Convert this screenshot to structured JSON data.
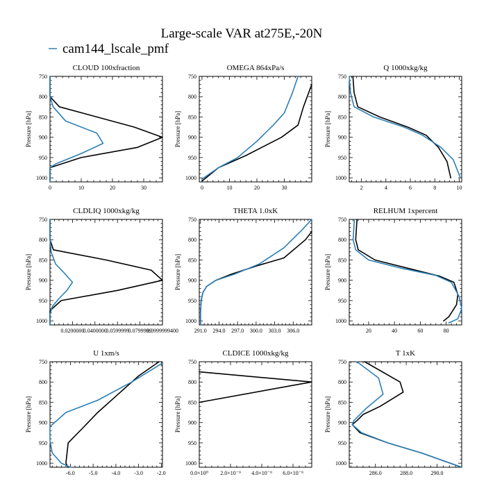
{
  "figure": {
    "title": "Large-scale VAR at275E,-20N",
    "legend_label": "cam144_lscale_pmf",
    "legend_color": "#2a7fb6"
  },
  "colors": {
    "obs": "#000000",
    "model": "#2a7fb6"
  },
  "chart_data": [
    {
      "type": "line",
      "title": "CLOUD  100xfraction",
      "ylabel": "Pressure [hPa]",
      "xlim": [
        0,
        36
      ],
      "ylim": [
        1010,
        750
      ],
      "inverted_y": true,
      "yticks": [
        750,
        800,
        850,
        900,
        950,
        1000
      ],
      "xticks": [
        0,
        10,
        20,
        30
      ],
      "xtick_labels": [
        "0",
        "10",
        "20",
        "30"
      ],
      "series": [
        {
          "color": "#000000",
          "points": [
            [
              0,
              750
            ],
            [
              0,
              800
            ],
            [
              3,
              825
            ],
            [
              27,
              875
            ],
            [
              36,
              900
            ],
            [
              28,
              925
            ],
            [
              10,
              950
            ],
            [
              0,
              975
            ],
            [
              0,
              1010
            ]
          ]
        },
        {
          "color": "#2a7fb6",
          "points": [
            [
              0,
              750
            ],
            [
              0,
              800
            ],
            [
              1,
              825
            ],
            [
              5,
              860
            ],
            [
              15,
              890
            ],
            [
              17,
              915
            ],
            [
              10,
              940
            ],
            [
              2,
              965
            ],
            [
              0,
              975
            ],
            [
              0,
              1010
            ]
          ]
        }
      ]
    },
    {
      "type": "line",
      "title": "OMEGA  864xPa/s",
      "ylabel": "Pressure [hPa]",
      "xlim": [
        -1,
        40
      ],
      "ylim": [
        1010,
        750
      ],
      "inverted_y": true,
      "yticks": [
        750,
        800,
        850,
        900,
        950,
        1000
      ],
      "xticks": [
        0,
        10,
        20,
        30
      ],
      "xtick_labels": [
        "0",
        "10",
        "20",
        "30"
      ],
      "series": [
        {
          "color": "#000000",
          "points": [
            [
              0,
              1008
            ],
            [
              6,
              975
            ],
            [
              16,
              945
            ],
            [
              29,
              900
            ],
            [
              35,
              870
            ],
            [
              37,
              825
            ],
            [
              40,
              770
            ]
          ]
        },
        {
          "color": "#2a7fb6",
          "points": [
            [
              0,
              1003
            ],
            [
              6,
              975
            ],
            [
              13,
              950
            ],
            [
              20,
              910
            ],
            [
              26,
              870
            ],
            [
              30,
              840
            ],
            [
              33,
              790
            ],
            [
              35,
              750
            ]
          ]
        }
      ]
    },
    {
      "type": "line",
      "title": "Q  1000xkg/kg",
      "ylabel": "Pressure [hPa]",
      "xlim": [
        1,
        10.2
      ],
      "ylim": [
        1010,
        750
      ],
      "inverted_y": true,
      "yticks": [
        750,
        800,
        850,
        900,
        950,
        1000
      ],
      "xticks": [
        2,
        4,
        6,
        8,
        10
      ],
      "xtick_labels": [
        "2",
        "4",
        "6",
        "8",
        "10"
      ],
      "series": [
        {
          "color": "#000000",
          "points": [
            [
              1.3,
              750
            ],
            [
              1.4,
              790
            ],
            [
              1.7,
              825
            ],
            [
              3.5,
              850
            ],
            [
              5.8,
              875
            ],
            [
              7.3,
              895
            ],
            [
              8.3,
              925
            ],
            [
              9.0,
              960
            ],
            [
              9.3,
              1000
            ]
          ]
        },
        {
          "color": "#2a7fb6",
          "points": [
            [
              1.0,
              750
            ],
            [
              1.1,
              790
            ],
            [
              1.4,
              825
            ],
            [
              3.0,
              850
            ],
            [
              5.5,
              875
            ],
            [
              7.0,
              895
            ],
            [
              8.5,
              925
            ],
            [
              9.5,
              955
            ],
            [
              10.1,
              1000
            ]
          ]
        }
      ]
    },
    {
      "type": "line",
      "title": "CLDLIQ  1000xkg/kg",
      "ylabel": "Pressure [hPa]",
      "xlim": [
        0,
        0.1
      ],
      "ylim": [
        1010,
        750
      ],
      "inverted_y": true,
      "yticks": [
        750,
        800,
        850,
        900,
        950,
        1000
      ],
      "xticks": [
        0.02,
        0.04,
        0.06,
        0.08,
        0.1
      ],
      "xtick_labels": [
        "0.0200000",
        "0.0400000",
        "0.0599999",
        "0.0799999",
        "0.0999999400"
      ],
      "series": [
        {
          "color": "#000000",
          "points": [
            [
              0,
              750
            ],
            [
              0,
              800
            ],
            [
              0.003,
              825
            ],
            [
              0.05,
              850
            ],
            [
              0.09,
              875
            ],
            [
              0.1,
              900
            ],
            [
              0.06,
              925
            ],
            [
              0.01,
              950
            ],
            [
              0,
              975
            ],
            [
              0,
              1010
            ]
          ]
        },
        {
          "color": "#2a7fb6",
          "points": [
            [
              0,
              750
            ],
            [
              0,
              800
            ],
            [
              0.001,
              830
            ],
            [
              0.005,
              860
            ],
            [
              0.012,
              880
            ],
            [
              0.02,
              905
            ],
            [
              0.015,
              925
            ],
            [
              0.008,
              945
            ],
            [
              0.002,
              965
            ],
            [
              0,
              985
            ],
            [
              0,
              1010
            ]
          ]
        }
      ]
    },
    {
      "type": "line",
      "title": "THETA  1.0xK",
      "ylabel": "Pressure [hPa]",
      "xlim": [
        290.8,
        309
      ],
      "ylim": [
        1010,
        750
      ],
      "inverted_y": true,
      "yticks": [
        750,
        800,
        850,
        900,
        950,
        1000
      ],
      "xticks": [
        291,
        294,
        297,
        300,
        303,
        306
      ],
      "xtick_labels": [
        "291.0",
        "294.0",
        "297.0",
        "300.0",
        "303.0",
        "306.0"
      ],
      "series": [
        {
          "color": "#000000",
          "points": [
            [
              291,
              1010
            ],
            [
              291,
              980
            ],
            [
              291.1,
              950
            ],
            [
              291.4,
              930
            ],
            [
              292,
              915
            ],
            [
              293.5,
              900
            ],
            [
              296,
              885
            ],
            [
              300,
              865
            ],
            [
              304.5,
              845
            ],
            [
              308,
              800
            ],
            [
              309,
              780
            ]
          ]
        },
        {
          "color": "#2a7fb6",
          "points": [
            [
              291,
              1010
            ],
            [
              291,
              980
            ],
            [
              291.1,
              950
            ],
            [
              291.4,
              930
            ],
            [
              292,
              915
            ],
            [
              293.5,
              900
            ],
            [
              296.5,
              885
            ],
            [
              300.5,
              860
            ],
            [
              304.5,
              820
            ],
            [
              307.5,
              775
            ],
            [
              309,
              750
            ]
          ]
        }
      ]
    },
    {
      "type": "line",
      "title": "RELHUM  1xpercent",
      "ylabel": "Pressure [hPa]",
      "xlim": [
        5,
        92
      ],
      "ylim": [
        1010,
        750
      ],
      "inverted_y": true,
      "yticks": [
        750,
        800,
        850,
        900,
        950,
        1000
      ],
      "xticks": [
        20,
        40,
        60,
        80
      ],
      "xtick_labels": [
        "20",
        "40",
        "60",
        "80"
      ],
      "series": [
        {
          "color": "#000000",
          "points": [
            [
              11,
              750
            ],
            [
              10,
              800
            ],
            [
              12,
              825
            ],
            [
              25,
              850
            ],
            [
              50,
              870
            ],
            [
              75,
              890
            ],
            [
              86,
              905
            ],
            [
              89,
              935
            ],
            [
              88,
              960
            ],
            [
              82,
              990
            ],
            [
              78,
              1000
            ]
          ]
        },
        {
          "color": "#2a7fb6",
          "points": [
            [
              9,
              750
            ],
            [
              8,
              800
            ],
            [
              10,
              825
            ],
            [
              20,
              850
            ],
            [
              45,
              870
            ],
            [
              72,
              888
            ],
            [
              84,
              905
            ],
            [
              90,
              940
            ],
            [
              92,
              970
            ],
            [
              89,
              995
            ],
            [
              82,
              1005
            ]
          ]
        }
      ]
    },
    {
      "type": "line",
      "title": "U  1xm/s",
      "ylabel": "Pressure [hPa]",
      "xlim": [
        -6.9,
        -1.95
      ],
      "ylim": [
        1010,
        750
      ],
      "inverted_y": true,
      "yticks": [
        750,
        800,
        850,
        900,
        950,
        1000
      ],
      "xticks": [
        -6,
        -5,
        -4,
        -3,
        -2
      ],
      "xtick_labels": [
        "-6.0",
        "-5.0",
        "-4.0",
        "-3.0",
        "-2.0"
      ],
      "series": [
        {
          "color": "#000000",
          "points": [
            [
              -2.1,
              750
            ],
            [
              -3,
              785
            ],
            [
              -4,
              835
            ],
            [
              -4.8,
              875
            ],
            [
              -5.4,
              910
            ],
            [
              -6.1,
              950
            ],
            [
              -6.2,
              1000
            ],
            [
              -6.1,
              1010
            ]
          ]
        },
        {
          "color": "#2a7fb6",
          "points": [
            [
              -2,
              755
            ],
            [
              -3.3,
              800
            ],
            [
              -4.8,
              845
            ],
            [
              -6.2,
              875
            ],
            [
              -6.9,
              910
            ],
            [
              -6.9,
              945
            ],
            [
              -6.8,
              975
            ],
            [
              -6.4,
              1000
            ],
            [
              -6.0,
              1010
            ]
          ]
        }
      ]
    },
    {
      "type": "line",
      "title": "CLDICE  1000xkg/kg",
      "ylabel": "Pressure [hPa]",
      "xlim": [
        0,
        7.2e-09
      ],
      "ylim": [
        1010,
        750
      ],
      "inverted_y": true,
      "yticks": [
        750,
        800,
        850,
        900,
        950,
        1000
      ],
      "xticks": [
        0,
        2e-09,
        4e-09,
        6e-09
      ],
      "xtick_labels": [
        "0.0×10⁰",
        "2.0×10⁻⁹",
        "4.0×10⁻⁹",
        "6.0×10⁻⁹"
      ],
      "series": [
        {
          "color": "#000000",
          "points": [
            [
              0,
              775
            ],
            [
              7.2e-09,
              800
            ],
            [
              0,
              850
            ]
          ]
        }
      ]
    },
    {
      "type": "line",
      "title": "T  1xK",
      "ylabel": "Pressure [hPa]",
      "xlim": [
        284.3,
        291.6
      ],
      "ylim": [
        1010,
        750
      ],
      "inverted_y": true,
      "yticks": [
        750,
        800,
        850,
        900,
        950,
        1000
      ],
      "xticks": [
        286,
        288,
        290
      ],
      "xtick_labels": [
        "286.0",
        "288.0",
        "290.0"
      ],
      "series": [
        {
          "color": "#000000",
          "points": [
            [
              285.3,
              750
            ],
            [
              287.6,
              800
            ],
            [
              287.8,
              825
            ],
            [
              286.3,
              860
            ],
            [
              285.2,
              880
            ],
            [
              284.8,
              895
            ],
            [
              284.5,
              905
            ],
            [
              285.0,
              925
            ],
            [
              286.8,
              950
            ],
            [
              289,
              975
            ],
            [
              291.6,
              1010
            ]
          ]
        },
        {
          "color": "#2a7fb6",
          "points": [
            [
              284.8,
              750
            ],
            [
              286.2,
              790
            ],
            [
              286.5,
              830
            ],
            [
              285.4,
              865
            ],
            [
              284.6,
              895
            ],
            [
              284.5,
              905
            ],
            [
              285.1,
              925
            ],
            [
              286.8,
              950
            ],
            [
              289,
              975
            ],
            [
              291.6,
              1010
            ]
          ]
        }
      ]
    }
  ]
}
